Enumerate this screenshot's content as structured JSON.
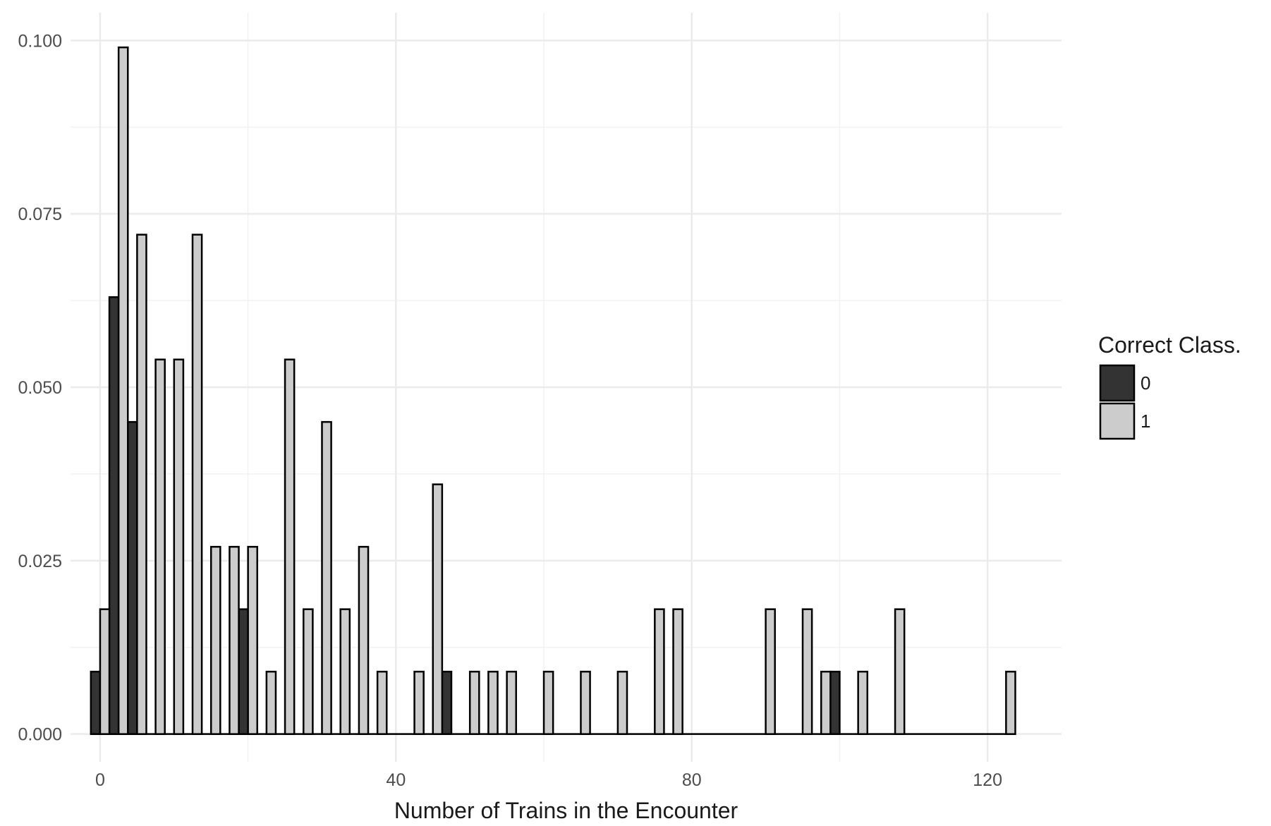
{
  "chart_data": {
    "type": "bar",
    "title": "",
    "xlabel": "Number of Trains in the Encounter",
    "ylabel": "",
    "xlim": [
      -4,
      130
    ],
    "ylim": [
      -0.004,
      0.104
    ],
    "x_ticks": [
      0,
      40,
      80,
      120
    ],
    "x_tick_labels": [
      "0",
      "40",
      "80",
      "120"
    ],
    "y_ticks": [
      0,
      0.025,
      0.05,
      0.075,
      0.1
    ],
    "y_tick_labels": [
      "0.000",
      "0.025",
      "0.050",
      "0.075",
      "0.100"
    ],
    "grid": true,
    "bin_width": 2.5,
    "legend": {
      "title": "Correct Class.",
      "placement": "right",
      "entries": [
        {
          "label": "0",
          "color": "#333333"
        },
        {
          "label": "1",
          "color": "#cccccc"
        }
      ]
    },
    "series": [
      {
        "name": "0",
        "color": "#333333",
        "x": [
          0,
          2.5,
          5,
          20,
          47.5,
          100
        ],
        "values": [
          0.009,
          0.063,
          0.045,
          0.018,
          0.009,
          0.009
        ]
      },
      {
        "name": "1",
        "color": "#cccccc",
        "x": [
          0,
          2.5,
          5,
          7.5,
          10,
          12.5,
          15,
          17.5,
          20,
          22.5,
          25,
          27.5,
          30,
          32.5,
          35,
          37.5,
          42.5,
          45,
          50,
          52.5,
          55,
          60,
          65,
          70,
          75,
          77.5,
          90,
          95,
          97.5,
          102.5,
          107.5,
          122.5
        ],
        "values": [
          0.018,
          0.099,
          0.072,
          0.054,
          0.054,
          0.072,
          0.027,
          0.027,
          0.027,
          0.009,
          0.054,
          0.018,
          0.045,
          0.018,
          0.027,
          0.009,
          0.009,
          0.036,
          0.009,
          0.009,
          0.009,
          0.009,
          0.009,
          0.009,
          0.018,
          0.018,
          0.018,
          0.018,
          0.009,
          0.009,
          0.018,
          0.009
        ]
      }
    ]
  }
}
